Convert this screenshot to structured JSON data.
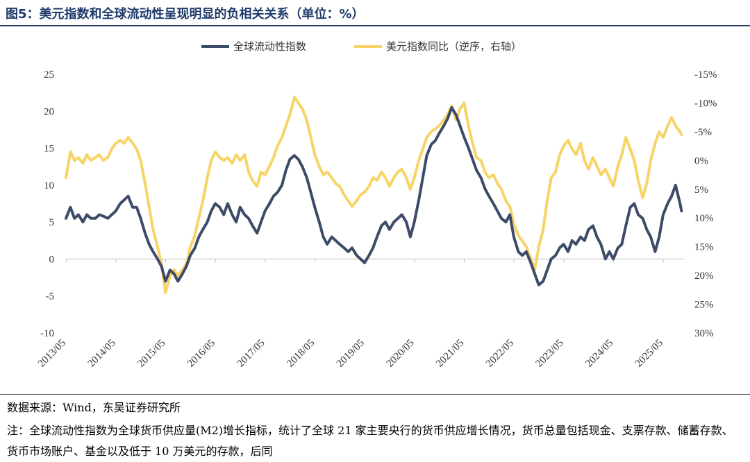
{
  "figure_title": "图5：美元指数和全球流动性呈现明显的负相关关系（单位：%）",
  "source": "数据来源：Wind，东吴证券研究所",
  "note": "注：全球流动性指数为全球货币供应量(M2)增长指标，统计了全球 21 家主要央行的货币供应增长情况，货币总量包括现金、支票存款、储蓄存款、货币市场账户、基金以及低于 10 万美元的存款，后同",
  "colors": {
    "series1": "#3d4b68",
    "series2": "#f7d467",
    "title": "#1f3a6b"
  },
  "chart_data": {
    "type": "line",
    "title": "图5：美元指数和全球流动性呈现明显的负相关关系（单位：%）",
    "legend_position": "top-center",
    "x_tick_labels": [
      "2013/05",
      "2014/05",
      "2015/05",
      "2016/05",
      "2017/05",
      "2018/05",
      "2019/05",
      "2020/05",
      "2021/05",
      "2022/05",
      "2023/05",
      "2024/05",
      "2025/05"
    ],
    "y_left": {
      "ticks": [
        "25",
        "20",
        "15",
        "10",
        "5",
        "0",
        "-5",
        "-10"
      ],
      "min": -10,
      "max": 25
    },
    "y_right": {
      "ticks": [
        "-15%",
        "-10%",
        "-5%",
        "0%",
        "5%",
        "10%",
        "15%",
        "20%",
        "25%",
        "30%"
      ],
      "min": -15,
      "max": 30,
      "inverted": true
    },
    "series": [
      {
        "name": "全球流动性指数",
        "axis": "left",
        "points": [
          [
            2013.33,
            5.5
          ],
          [
            2013.42,
            7
          ],
          [
            2013.5,
            5.5
          ],
          [
            2013.58,
            6
          ],
          [
            2013.67,
            5
          ],
          [
            2013.75,
            6
          ],
          [
            2013.83,
            5.5
          ],
          [
            2013.92,
            5.5
          ],
          [
            2014.0,
            6
          ],
          [
            2014.08,
            5.8
          ],
          [
            2014.17,
            5.5
          ],
          [
            2014.25,
            6
          ],
          [
            2014.33,
            6.5
          ],
          [
            2014.42,
            7.5
          ],
          [
            2014.5,
            8
          ],
          [
            2014.58,
            8.5
          ],
          [
            2014.67,
            7
          ],
          [
            2014.75,
            7
          ],
          [
            2014.83,
            5.5
          ],
          [
            2014.92,
            3.5
          ],
          [
            2015.0,
            2
          ],
          [
            2015.08,
            1
          ],
          [
            2015.17,
            0
          ],
          [
            2015.25,
            -1
          ],
          [
            2015.33,
            -3
          ],
          [
            2015.42,
            -1.5
          ],
          [
            2015.5,
            -2
          ],
          [
            2015.58,
            -3
          ],
          [
            2015.67,
            -2
          ],
          [
            2015.75,
            -1
          ],
          [
            2015.83,
            0.5
          ],
          [
            2015.92,
            1.5
          ],
          [
            2016.0,
            3
          ],
          [
            2016.08,
            4
          ],
          [
            2016.17,
            5
          ],
          [
            2016.25,
            6.5
          ],
          [
            2016.33,
            7.5
          ],
          [
            2016.42,
            7
          ],
          [
            2016.5,
            6
          ],
          [
            2016.58,
            7.5
          ],
          [
            2016.67,
            6
          ],
          [
            2016.75,
            5
          ],
          [
            2016.83,
            7
          ],
          [
            2016.92,
            6
          ],
          [
            2017.0,
            5.5
          ],
          [
            2017.08,
            4.5
          ],
          [
            2017.17,
            3.5
          ],
          [
            2017.25,
            5
          ],
          [
            2017.33,
            6.5
          ],
          [
            2017.42,
            7.5
          ],
          [
            2017.5,
            8.5
          ],
          [
            2017.58,
            9
          ],
          [
            2017.67,
            10
          ],
          [
            2017.75,
            12
          ],
          [
            2017.83,
            13.5
          ],
          [
            2017.92,
            14
          ],
          [
            2018.0,
            13.5
          ],
          [
            2018.08,
            12.5
          ],
          [
            2018.17,
            11
          ],
          [
            2018.25,
            9
          ],
          [
            2018.33,
            7
          ],
          [
            2018.42,
            5
          ],
          [
            2018.5,
            3
          ],
          [
            2018.58,
            2
          ],
          [
            2018.67,
            3
          ],
          [
            2018.75,
            2.5
          ],
          [
            2018.83,
            2
          ],
          [
            2018.92,
            1.5
          ],
          [
            2019.0,
            1
          ],
          [
            2019.08,
            1.5
          ],
          [
            2019.17,
            0.5
          ],
          [
            2019.25,
            0
          ],
          [
            2019.33,
            -0.5
          ],
          [
            2019.42,
            0.5
          ],
          [
            2019.5,
            1.5
          ],
          [
            2019.58,
            3
          ],
          [
            2019.67,
            4.5
          ],
          [
            2019.75,
            5
          ],
          [
            2019.83,
            4
          ],
          [
            2019.92,
            5
          ],
          [
            2020.0,
            5.5
          ],
          [
            2020.08,
            6
          ],
          [
            2020.17,
            5
          ],
          [
            2020.25,
            3
          ],
          [
            2020.33,
            5
          ],
          [
            2020.42,
            8
          ],
          [
            2020.5,
            11
          ],
          [
            2020.58,
            14
          ],
          [
            2020.67,
            15.5
          ],
          [
            2020.75,
            16
          ],
          [
            2020.83,
            17
          ],
          [
            2020.92,
            18
          ],
          [
            2021.0,
            19
          ],
          [
            2021.08,
            20.5
          ],
          [
            2021.17,
            19.5
          ],
          [
            2021.25,
            18
          ],
          [
            2021.33,
            16.5
          ],
          [
            2021.42,
            15
          ],
          [
            2021.5,
            13.5
          ],
          [
            2021.58,
            12
          ],
          [
            2021.67,
            11
          ],
          [
            2021.75,
            9.5
          ],
          [
            2021.83,
            8.5
          ],
          [
            2021.92,
            7.5
          ],
          [
            2022.0,
            6.5
          ],
          [
            2022.08,
            5.5
          ],
          [
            2022.17,
            5
          ],
          [
            2022.25,
            6
          ],
          [
            2022.33,
            3
          ],
          [
            2022.42,
            1
          ],
          [
            2022.5,
            0.5
          ],
          [
            2022.58,
            1
          ],
          [
            2022.67,
            -0.5
          ],
          [
            2022.75,
            -2
          ],
          [
            2022.83,
            -3.5
          ],
          [
            2022.92,
            -3
          ],
          [
            2023.0,
            -1.5
          ],
          [
            2023.08,
            0
          ],
          [
            2023.17,
            0.5
          ],
          [
            2023.25,
            1.5
          ],
          [
            2023.33,
            2
          ],
          [
            2023.42,
            1
          ],
          [
            2023.5,
            2.5
          ],
          [
            2023.58,
            2
          ],
          [
            2023.67,
            3
          ],
          [
            2023.75,
            2.5
          ],
          [
            2023.83,
            4
          ],
          [
            2023.92,
            4.5
          ],
          [
            2024.0,
            3
          ],
          [
            2024.08,
            2
          ],
          [
            2024.17,
            0
          ],
          [
            2024.25,
            1
          ],
          [
            2024.33,
            0
          ],
          [
            2024.42,
            1.5
          ],
          [
            2024.5,
            2
          ],
          [
            2024.58,
            4.5
          ],
          [
            2024.67,
            7
          ],
          [
            2024.75,
            7.5
          ],
          [
            2024.83,
            6
          ],
          [
            2024.92,
            5.5
          ],
          [
            2025.0,
            4
          ],
          [
            2025.08,
            3
          ],
          [
            2025.17,
            1
          ],
          [
            2025.25,
            3
          ],
          [
            2025.33,
            6
          ],
          [
            2025.42,
            7.5
          ],
          [
            2025.5,
            8.5
          ],
          [
            2025.58,
            10
          ],
          [
            2025.67,
            7.5
          ],
          [
            2025.7,
            6.5
          ]
        ]
      },
      {
        "name": "美元指数同比（逆序，右轴）",
        "axis": "right",
        "points": [
          [
            2013.33,
            3
          ],
          [
            2013.42,
            -1.5
          ],
          [
            2013.5,
            0
          ],
          [
            2013.58,
            -0.5
          ],
          [
            2013.67,
            0.5
          ],
          [
            2013.75,
            -1
          ],
          [
            2013.83,
            0
          ],
          [
            2013.92,
            -0.5
          ],
          [
            2014.0,
            -1
          ],
          [
            2014.08,
            0
          ],
          [
            2014.17,
            -0.5
          ],
          [
            2014.25,
            -2
          ],
          [
            2014.33,
            -3
          ],
          [
            2014.42,
            -3.5
          ],
          [
            2014.5,
            -3
          ],
          [
            2014.58,
            -4
          ],
          [
            2014.67,
            -3
          ],
          [
            2014.75,
            -2
          ],
          [
            2014.83,
            0
          ],
          [
            2014.92,
            4
          ],
          [
            2015.0,
            8
          ],
          [
            2015.08,
            12
          ],
          [
            2015.17,
            15
          ],
          [
            2015.25,
            18
          ],
          [
            2015.33,
            23
          ],
          [
            2015.42,
            20
          ],
          [
            2015.5,
            19
          ],
          [
            2015.58,
            20
          ],
          [
            2015.67,
            19
          ],
          [
            2015.75,
            18
          ],
          [
            2015.83,
            15
          ],
          [
            2015.92,
            13
          ],
          [
            2016.0,
            10
          ],
          [
            2016.08,
            7
          ],
          [
            2016.17,
            3
          ],
          [
            2016.25,
            0
          ],
          [
            2016.33,
            -1.5
          ],
          [
            2016.42,
            -0.5
          ],
          [
            2016.5,
            0
          ],
          [
            2016.58,
            -0.5
          ],
          [
            2016.67,
            0.5
          ],
          [
            2016.75,
            -1
          ],
          [
            2016.83,
            0
          ],
          [
            2016.92,
            -1
          ],
          [
            2017.0,
            2
          ],
          [
            2017.08,
            3.5
          ],
          [
            2017.17,
            4.5
          ],
          [
            2017.25,
            2
          ],
          [
            2017.33,
            2.5
          ],
          [
            2017.42,
            1
          ],
          [
            2017.5,
            -0.5
          ],
          [
            2017.58,
            -2.5
          ],
          [
            2017.67,
            -4
          ],
          [
            2017.75,
            -6
          ],
          [
            2017.83,
            -8
          ],
          [
            2017.92,
            -11
          ],
          [
            2018.0,
            -10
          ],
          [
            2018.08,
            -9
          ],
          [
            2018.17,
            -7
          ],
          [
            2018.25,
            -4
          ],
          [
            2018.33,
            -1
          ],
          [
            2018.42,
            1
          ],
          [
            2018.5,
            2.5
          ],
          [
            2018.58,
            2
          ],
          [
            2018.67,
            3
          ],
          [
            2018.75,
            4
          ],
          [
            2018.83,
            4.5
          ],
          [
            2018.92,
            6
          ],
          [
            2019.0,
            7
          ],
          [
            2019.08,
            8
          ],
          [
            2019.17,
            7
          ],
          [
            2019.25,
            6
          ],
          [
            2019.33,
            5.5
          ],
          [
            2019.42,
            4.5
          ],
          [
            2019.5,
            3
          ],
          [
            2019.58,
            3.5
          ],
          [
            2019.67,
            2
          ],
          [
            2019.75,
            3
          ],
          [
            2019.83,
            4.5
          ],
          [
            2019.92,
            3
          ],
          [
            2020.0,
            2
          ],
          [
            2020.08,
            1.5
          ],
          [
            2020.17,
            3
          ],
          [
            2020.25,
            5
          ],
          [
            2020.33,
            3
          ],
          [
            2020.42,
            0
          ],
          [
            2020.5,
            -2
          ],
          [
            2020.58,
            -4
          ],
          [
            2020.67,
            -5
          ],
          [
            2020.75,
            -5.5
          ],
          [
            2020.83,
            -6
          ],
          [
            2020.92,
            -7
          ],
          [
            2021.0,
            -8
          ],
          [
            2021.08,
            -9.5
          ],
          [
            2021.17,
            -7
          ],
          [
            2021.25,
            -9
          ],
          [
            2021.33,
            -10
          ],
          [
            2021.42,
            -6
          ],
          [
            2021.5,
            -3
          ],
          [
            2021.58,
            -0.5
          ],
          [
            2021.67,
            0
          ],
          [
            2021.75,
            2
          ],
          [
            2021.83,
            3
          ],
          [
            2021.92,
            2.5
          ],
          [
            2022.0,
            4
          ],
          [
            2022.08,
            5
          ],
          [
            2022.17,
            7
          ],
          [
            2022.25,
            8
          ],
          [
            2022.33,
            11
          ],
          [
            2022.42,
            13
          ],
          [
            2022.5,
            14
          ],
          [
            2022.58,
            15
          ],
          [
            2022.67,
            17
          ],
          [
            2022.75,
            19
          ],
          [
            2022.83,
            15
          ],
          [
            2022.92,
            12
          ],
          [
            2023.0,
            7
          ],
          [
            2023.08,
            3
          ],
          [
            2023.17,
            2
          ],
          [
            2023.25,
            -1
          ],
          [
            2023.33,
            -2.5
          ],
          [
            2023.42,
            -3.5
          ],
          [
            2023.5,
            -2
          ],
          [
            2023.58,
            -1
          ],
          [
            2023.67,
            -3
          ],
          [
            2023.75,
            0
          ],
          [
            2023.83,
            1.5
          ],
          [
            2023.92,
            -0.5
          ],
          [
            2024.0,
            1
          ],
          [
            2024.08,
            2.5
          ],
          [
            2024.17,
            1.5
          ],
          [
            2024.25,
            3
          ],
          [
            2024.33,
            4.5
          ],
          [
            2024.42,
            1
          ],
          [
            2024.5,
            -1
          ],
          [
            2024.58,
            -4
          ],
          [
            2024.67,
            -2
          ],
          [
            2024.75,
            0
          ],
          [
            2024.83,
            3.5
          ],
          [
            2024.92,
            6.5
          ],
          [
            2025.0,
            4
          ],
          [
            2025.08,
            0
          ],
          [
            2025.17,
            -3
          ],
          [
            2025.25,
            -5
          ],
          [
            2025.33,
            -4
          ],
          [
            2025.42,
            -6
          ],
          [
            2025.5,
            -7.5
          ],
          [
            2025.58,
            -6
          ],
          [
            2025.67,
            -5
          ],
          [
            2025.7,
            -4.5
          ]
        ]
      }
    ]
  }
}
